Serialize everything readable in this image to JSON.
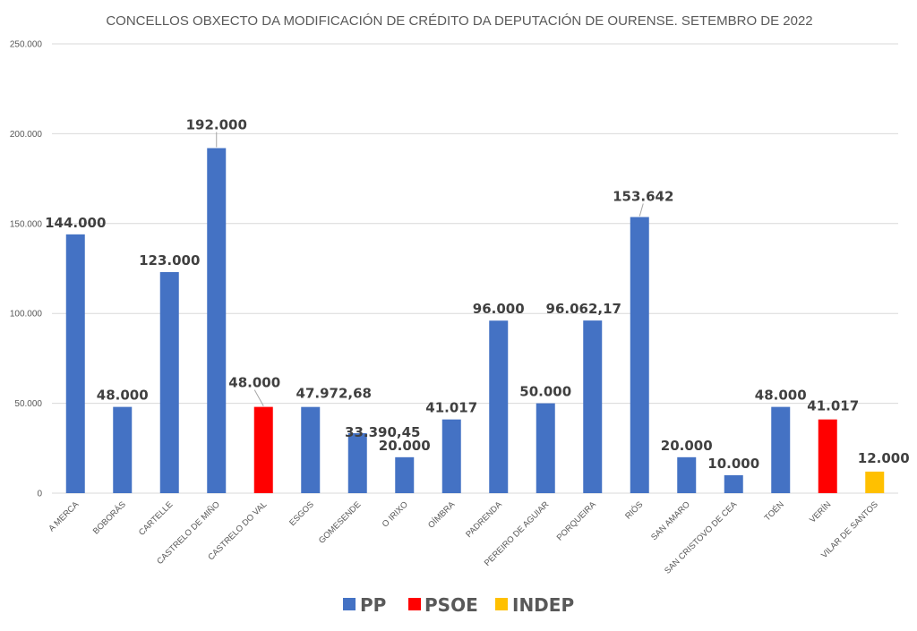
{
  "chart_data": {
    "type": "bar",
    "title": "CONCELLOS OBXECTO DA MODIFICACIÓN DE CRÉDITO DA DEPUTACIÓN DE OURENSE. SETEMBRO DE 2022",
    "xlabel": "",
    "ylabel": "",
    "ylim": [
      0,
      250000
    ],
    "yticks": [
      0,
      50000,
      100000,
      150000,
      200000,
      250000
    ],
    "ytick_labels": [
      "0",
      "50.000",
      "100.000",
      "150.000",
      "200.000",
      "250.000"
    ],
    "grid": true,
    "categories": [
      "A MERCA",
      "BOBORÁS",
      "CARTELLE",
      "CASTRELO DE MIÑO",
      "CASTRELO DO VAL",
      "ESGOS",
      "GOMESENDE",
      "O IRIXO",
      "OÍMBRA",
      "PADRENDA",
      "PEREIRO DE AGUIAR",
      "PORQUEIRA",
      "RIÓS",
      "SAN AMARO",
      "SAN CRISTOVO DE CEA",
      "TOÉN",
      "VERÍN",
      "VILAR DE SANTOS"
    ],
    "values": [
      144000,
      48000,
      123000,
      192000,
      48000,
      47972.68,
      33390.45,
      20000,
      41017,
      96000,
      50000,
      96062.17,
      153642,
      20000,
      10000,
      48000,
      41017,
      12000
    ],
    "value_labels": [
      "144.000",
      "48.000",
      "123.000",
      "192.000",
      "48.000",
      "47.972,68",
      "33.390,45",
      "20.000",
      "41.017",
      "96.000",
      "50.000",
      "96.062,17",
      "153.642",
      "20.000",
      "10.000",
      "48.000",
      "41.017",
      "12.000"
    ],
    "party": [
      "PP",
      "PP",
      "PP",
      "PP",
      "PSOE",
      "PP",
      "PP",
      "PP",
      "PP",
      "PP",
      "PP",
      "PP",
      "PP",
      "PP",
      "PP",
      "PP",
      "PSOE",
      "INDEP"
    ],
    "legend": [
      {
        "name": "PP",
        "color": "#4472C4"
      },
      {
        "name": "PSOE",
        "color": "#FF0000"
      },
      {
        "name": "INDEP",
        "color": "#FFC000"
      }
    ],
    "legend_position": "bottom"
  }
}
